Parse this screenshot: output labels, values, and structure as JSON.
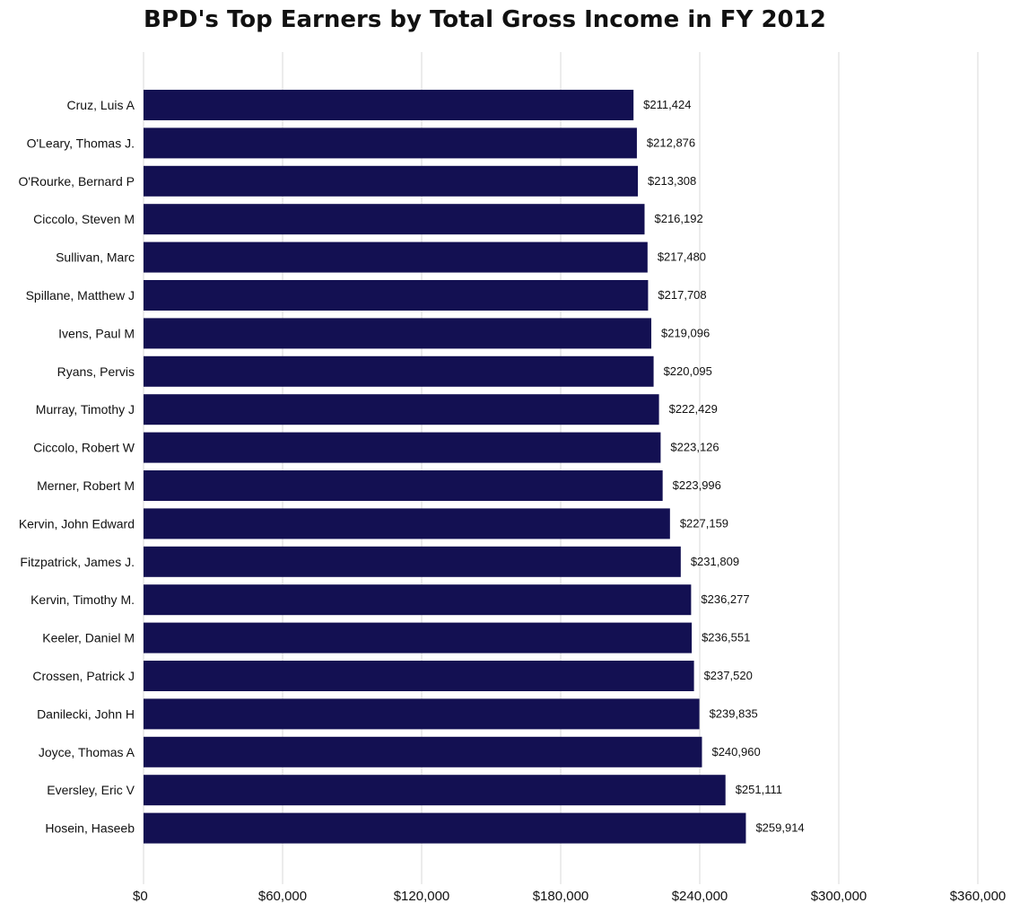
{
  "chart_data": {
    "type": "bar",
    "orientation": "horizontal",
    "title": "BPD's Top Earners by Total Gross Income in FY 2012",
    "xlabel": "",
    "ylabel": "",
    "xlim": [
      0,
      360000
    ],
    "x_ticks": [
      0,
      60000,
      120000,
      180000,
      240000,
      300000,
      360000
    ],
    "x_tick_labels": [
      "$0",
      "$60,000",
      "$120,000",
      "$180,000",
      "$240,000",
      "$300,000",
      "$360,000"
    ],
    "grid": "vertical",
    "bar_color": "#131052",
    "categories": [
      "Cruz, Luis A",
      "O'Leary, Thomas J.",
      "O'Rourke, Bernard P",
      "Ciccolo, Steven M",
      "Sullivan, Marc",
      "Spillane, Matthew J",
      "Ivens, Paul M",
      "Ryans, Pervis",
      "Murray, Timothy J",
      "Ciccolo, Robert W",
      "Merner, Robert M",
      "Kervin, John Edward",
      "Fitzpatrick, James J.",
      "Kervin, Timothy M.",
      "Keeler, Daniel M",
      "Crossen, Patrick J",
      "Danilecki, John H",
      "Joyce, Thomas A",
      "Eversley, Eric V",
      "Hosein, Haseeb"
    ],
    "values": [
      211424,
      212876,
      213308,
      216192,
      217480,
      217708,
      219096,
      220095,
      222429,
      223126,
      223996,
      227159,
      231809,
      236277,
      236551,
      237520,
      239835,
      240960,
      251111,
      259914
    ],
    "value_labels": [
      "$211,424",
      "$212,876",
      "$213,308",
      "$216,192",
      "$217,480",
      "$217,708",
      "$219,096",
      "$220,095",
      "$222,429",
      "$223,126",
      "$223,996",
      "$227,159",
      "$231,809",
      "$236,277",
      "$236,551",
      "$237,520",
      "$239,835",
      "$240,960",
      "$251,111",
      "$259,914"
    ]
  }
}
